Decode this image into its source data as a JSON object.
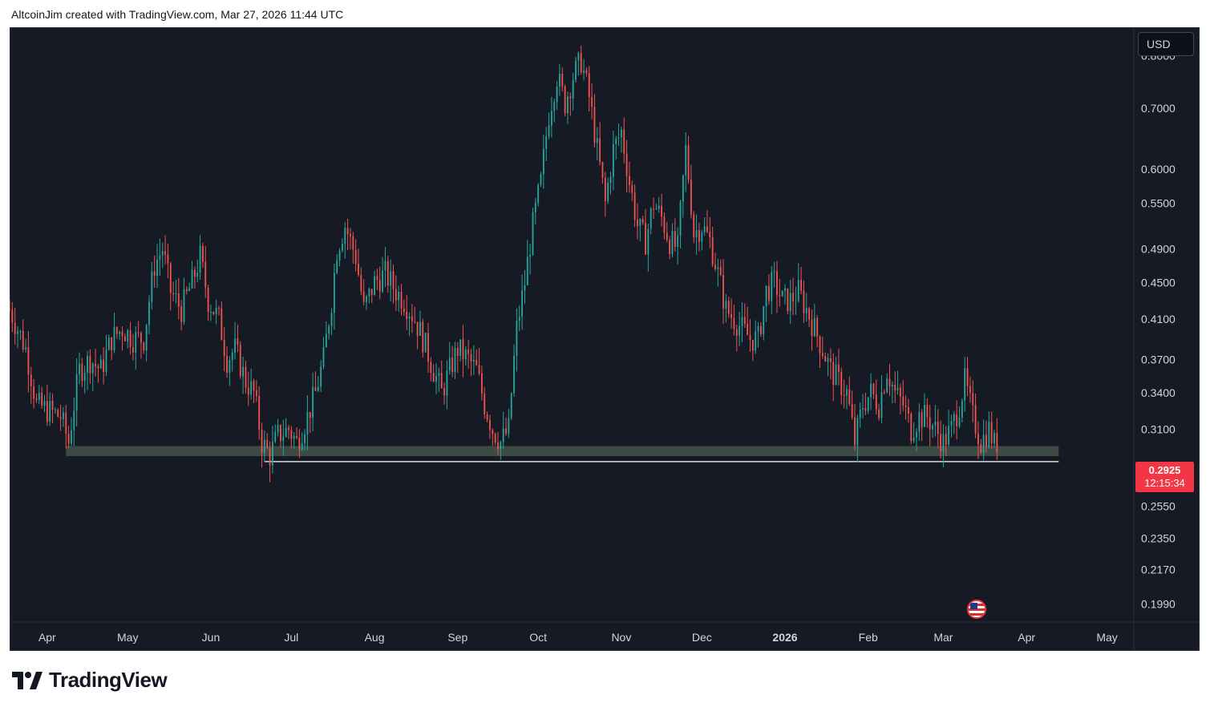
{
  "header": {
    "attribution": "AltcoinJim created with TradingView.com, Mar 27, 2026 11:44 UTC"
  },
  "currency_label": "USD",
  "current_price": {
    "value": "0.2925",
    "countdown": "12:15:34"
  },
  "branding": {
    "logo_text": "TradingView"
  },
  "colors": {
    "background": "#161a25",
    "up": "#26a69a",
    "down": "#ef5350",
    "zone": "#3d4a44",
    "price_tag": "#f23645",
    "axis_text": "#d1d4dc"
  },
  "chart_data": {
    "type": "candlestick",
    "y_scale": "log",
    "ylim": [
      0.19,
      0.86
    ],
    "y_ticks": [
      "0.8000",
      "0.7000",
      "0.6000",
      "0.5500",
      "0.4900",
      "0.4500",
      "0.4100",
      "0.3700",
      "0.3400",
      "0.3100",
      "0.2550",
      "0.2350",
      "0.2170",
      "0.1990"
    ],
    "x_ticks": [
      {
        "label": "Apr",
        "day": 0,
        "bold": false
      },
      {
        "label": "May",
        "day": 30,
        "bold": false
      },
      {
        "label": "Jun",
        "day": 61,
        "bold": false
      },
      {
        "label": "Jul",
        "day": 91,
        "bold": false
      },
      {
        "label": "Aug",
        "day": 122,
        "bold": false
      },
      {
        "label": "Sep",
        "day": 153,
        "bold": false
      },
      {
        "label": "Oct",
        "day": 183,
        "bold": false
      },
      {
        "label": "Nov",
        "day": 214,
        "bold": false
      },
      {
        "label": "Dec",
        "day": 244,
        "bold": false
      },
      {
        "label": "2026",
        "day": 275,
        "bold": true
      },
      {
        "label": "Feb",
        "day": 306,
        "bold": false
      },
      {
        "label": "Mar",
        "day": 334,
        "bold": false
      },
      {
        "label": "Apr",
        "day": 365,
        "bold": false
      },
      {
        "label": "May",
        "day": 395,
        "bold": false
      }
    ],
    "support_zone": {
      "from_day": 7,
      "to_day": 377,
      "low": 0.2895,
      "high": 0.297
    },
    "support_line": {
      "from_day": 81,
      "to_day": 377,
      "value": 0.2855
    },
    "close_path": [
      [
        -14,
        0.42
      ],
      [
        -8,
        0.38
      ],
      [
        -4,
        0.33
      ],
      [
        5,
        0.32
      ],
      [
        8,
        0.3
      ],
      [
        12,
        0.36
      ],
      [
        16,
        0.37
      ],
      [
        20,
        0.36
      ],
      [
        24,
        0.39
      ],
      [
        28,
        0.4
      ],
      [
        32,
        0.39
      ],
      [
        36,
        0.39
      ],
      [
        40,
        0.47
      ],
      [
        43,
        0.49
      ],
      [
        46,
        0.44
      ],
      [
        50,
        0.42
      ],
      [
        54,
        0.45
      ],
      [
        57,
        0.48
      ],
      [
        60,
        0.43
      ],
      [
        64,
        0.41
      ],
      [
        67,
        0.37
      ],
      [
        70,
        0.38
      ],
      [
        74,
        0.35
      ],
      [
        77,
        0.34
      ],
      [
        80,
        0.3
      ],
      [
        83,
        0.29
      ],
      [
        86,
        0.305
      ],
      [
        90,
        0.31
      ],
      [
        93,
        0.3
      ],
      [
        97,
        0.32
      ],
      [
        100,
        0.34
      ],
      [
        103,
        0.37
      ],
      [
        106,
        0.43
      ],
      [
        108,
        0.49
      ],
      [
        111,
        0.52
      ],
      [
        115,
        0.48
      ],
      [
        118,
        0.42
      ],
      [
        122,
        0.45
      ],
      [
        126,
        0.46
      ],
      [
        130,
        0.44
      ],
      [
        133,
        0.43
      ],
      [
        137,
        0.41
      ],
      [
        140,
        0.39
      ],
      [
        144,
        0.36
      ],
      [
        147,
        0.34
      ],
      [
        150,
        0.36
      ],
      [
        153,
        0.38
      ],
      [
        157,
        0.37
      ],
      [
        160,
        0.36
      ],
      [
        163,
        0.33
      ],
      [
        166,
        0.31
      ],
      [
        169,
        0.3
      ],
      [
        172,
        0.31
      ],
      [
        175,
        0.4
      ],
      [
        178,
        0.45
      ],
      [
        181,
        0.52
      ],
      [
        184,
        0.58
      ],
      [
        187,
        0.69
      ],
      [
        190,
        0.76
      ],
      [
        193,
        0.71
      ],
      [
        196,
        0.76
      ],
      [
        199,
        0.79
      ],
      [
        202,
        0.72
      ],
      [
        205,
        0.63
      ],
      [
        208,
        0.55
      ],
      [
        211,
        0.63
      ],
      [
        214,
        0.66
      ],
      [
        217,
        0.58
      ],
      [
        220,
        0.52
      ],
      [
        223,
        0.5
      ],
      [
        226,
        0.55
      ],
      [
        229,
        0.53
      ],
      [
        232,
        0.5
      ],
      [
        235,
        0.49
      ],
      [
        238,
        0.63
      ],
      [
        241,
        0.51
      ],
      [
        244,
        0.52
      ],
      [
        247,
        0.5
      ],
      [
        250,
        0.46
      ],
      [
        253,
        0.42
      ],
      [
        256,
        0.41
      ],
      [
        259,
        0.4
      ],
      [
        262,
        0.39
      ],
      [
        265,
        0.39
      ],
      [
        268,
        0.44
      ],
      [
        271,
        0.45
      ],
      [
        274,
        0.43
      ],
      [
        277,
        0.43
      ],
      [
        280,
        0.44
      ],
      [
        283,
        0.42
      ],
      [
        286,
        0.4
      ],
      [
        289,
        0.38
      ],
      [
        292,
        0.36
      ],
      [
        295,
        0.35
      ],
      [
        298,
        0.34
      ],
      [
        301,
        0.3
      ],
      [
        304,
        0.33
      ],
      [
        307,
        0.34
      ],
      [
        310,
        0.33
      ],
      [
        313,
        0.36
      ],
      [
        316,
        0.34
      ],
      [
        319,
        0.33
      ],
      [
        322,
        0.31
      ],
      [
        325,
        0.32
      ],
      [
        328,
        0.32
      ],
      [
        331,
        0.31
      ],
      [
        334,
        0.3
      ],
      [
        337,
        0.31
      ],
      [
        340,
        0.33
      ],
      [
        342,
        0.35
      ],
      [
        345,
        0.32
      ],
      [
        348,
        0.3
      ],
      [
        351,
        0.31
      ],
      [
        354,
        0.2925
      ]
    ],
    "x_range_days": [
      -14,
      405
    ]
  }
}
